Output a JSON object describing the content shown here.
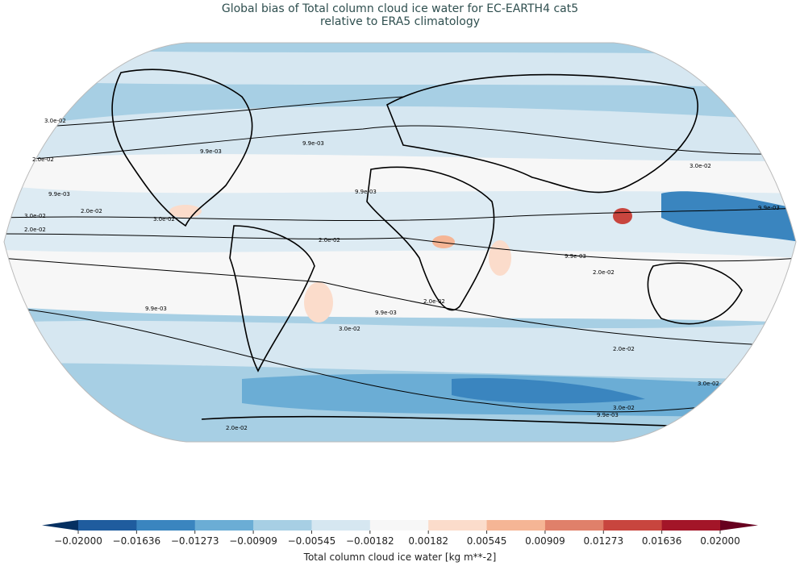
{
  "title": {
    "line1": "Global bias of Total column cloud ice water for EC-EARTH4 cat5",
    "line2": "relative to ERA5 climatology"
  },
  "map": {
    "projection": "Robinson",
    "contour_levels": [
      "9.9e-03",
      "2.0e-02",
      "3.0e-02"
    ],
    "contour_labels": [
      "9.9e-03",
      "2.0e-02",
      "3.0e-02",
      "2.0e-02",
      "3.0e-02",
      "9.9e-03",
      "2.0e-02",
      "3.0e-02",
      "9.9e-03",
      "9.9e-03",
      "2.0e-02",
      "3.0e-02",
      "2.0e-02",
      "9.9e-03",
      "9.9e-03",
      "3.0e-02",
      "2.0e-02",
      "3.0e-02",
      "9.9e-03",
      "2.0e-02",
      "9.9e-03",
      "3.0e-02",
      "2.0e-02",
      "9.9e-03"
    ]
  },
  "colorbar": {
    "label": "Total column cloud ice water [kg m**-2]",
    "ticks": [
      "−0.02000",
      "−0.01636",
      "−0.01273",
      "−0.00909",
      "−0.00545",
      "−0.00182",
      "0.00182",
      "0.00545",
      "0.00909",
      "0.01273",
      "0.01636",
      "0.02000"
    ],
    "colors": [
      "#1f5c9e",
      "#3a85bf",
      "#6badd5",
      "#a7cfe4",
      "#d6e7f1",
      "#f7f7f7",
      "#fbdccb",
      "#f5b595",
      "#e0806a",
      "#c8453e",
      "#a31528"
    ],
    "under_color": "#053061",
    "over_color": "#67001f",
    "extend": "both"
  }
}
